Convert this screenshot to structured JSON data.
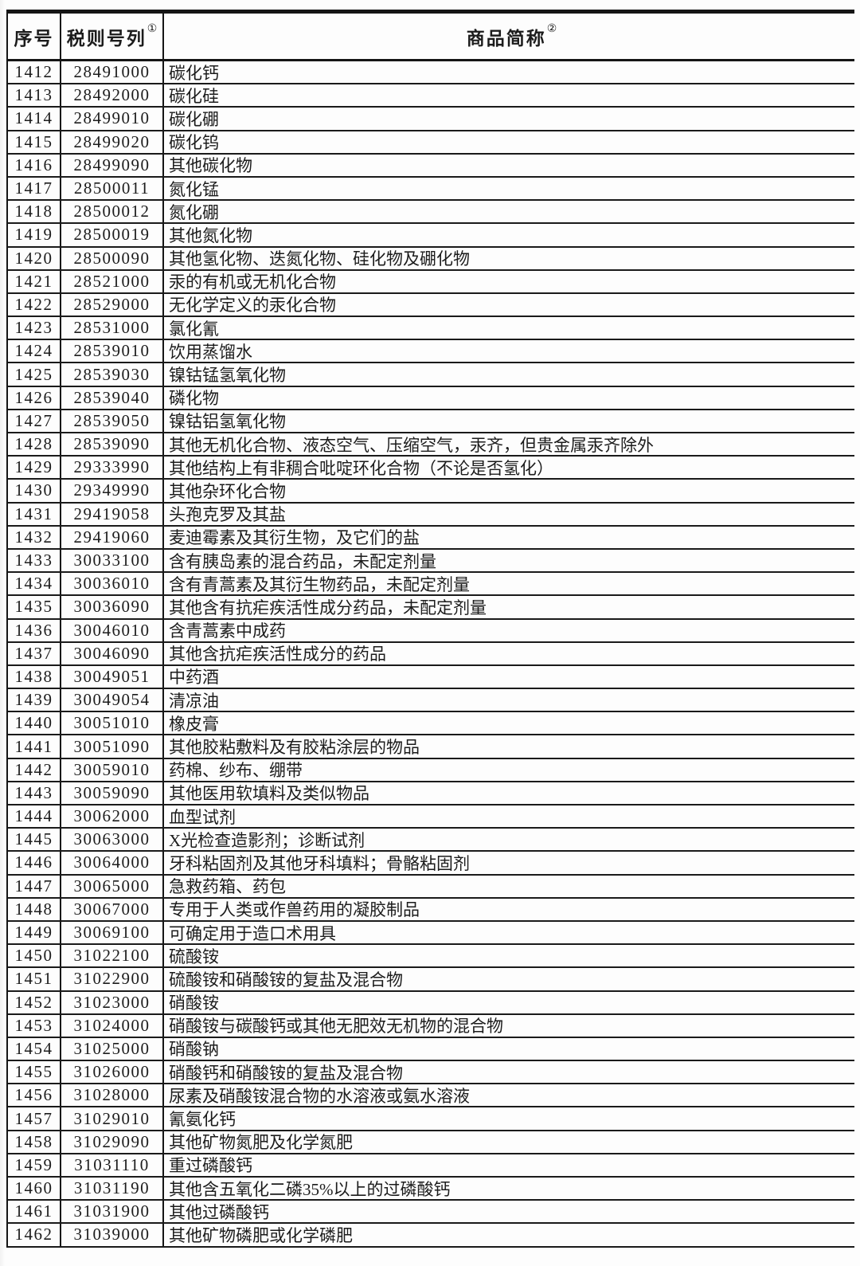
{
  "document": {
    "type": "tariff-schedule-table",
    "colors": {
      "background": "#fdfdfd",
      "text": "#1c1c1c",
      "border": "#1a1a1a"
    }
  },
  "table": {
    "columns": [
      {
        "label": "序号",
        "sup": ""
      },
      {
        "label": "税则号列",
        "sup": "①"
      },
      {
        "label": "商品简称",
        "sup": "②"
      }
    ],
    "rows": [
      {
        "no": "1412",
        "code": "28491000",
        "name": "碳化钙"
      },
      {
        "no": "1413",
        "code": "28492000",
        "name": "碳化硅"
      },
      {
        "no": "1414",
        "code": "28499010",
        "name": "碳化硼"
      },
      {
        "no": "1415",
        "code": "28499020",
        "name": "碳化钨"
      },
      {
        "no": "1416",
        "code": "28499090",
        "name": "其他碳化物"
      },
      {
        "no": "1417",
        "code": "28500011",
        "name": "氮化锰"
      },
      {
        "no": "1418",
        "code": "28500012",
        "name": "氮化硼"
      },
      {
        "no": "1419",
        "code": "28500019",
        "name": "其他氮化物"
      },
      {
        "no": "1420",
        "code": "28500090",
        "name": "其他氢化物、迭氮化物、硅化物及硼化物"
      },
      {
        "no": "1421",
        "code": "28521000",
        "name": "汞的有机或无机化合物"
      },
      {
        "no": "1422",
        "code": "28529000",
        "name": "无化学定义的汞化合物"
      },
      {
        "no": "1423",
        "code": "28531000",
        "name": "氯化氰"
      },
      {
        "no": "1424",
        "code": "28539010",
        "name": "饮用蒸馏水"
      },
      {
        "no": "1425",
        "code": "28539030",
        "name": "镍钴锰氢氧化物"
      },
      {
        "no": "1426",
        "code": "28539040",
        "name": "磷化物"
      },
      {
        "no": "1427",
        "code": "28539050",
        "name": "镍钴铝氢氧化物"
      },
      {
        "no": "1428",
        "code": "28539090",
        "name": "其他无机化合物、液态空气、压缩空气，汞齐，但贵金属汞齐除外"
      },
      {
        "no": "1429",
        "code": "29333990",
        "name": "其他结构上有非稠合吡啶环化合物（不论是否氢化）"
      },
      {
        "no": "1430",
        "code": "29349990",
        "name": "其他杂环化合物"
      },
      {
        "no": "1431",
        "code": "29419058",
        "name": "头孢克罗及其盐"
      },
      {
        "no": "1432",
        "code": "29419060",
        "name": "麦迪霉素及其衍生物，及它们的盐"
      },
      {
        "no": "1433",
        "code": "30033100",
        "name": "含有胰岛素的混合药品，未配定剂量"
      },
      {
        "no": "1434",
        "code": "30036010",
        "name": "含有青蒿素及其衍生物药品，未配定剂量"
      },
      {
        "no": "1435",
        "code": "30036090",
        "name": "其他含有抗疟疾活性成分药品，未配定剂量"
      },
      {
        "no": "1436",
        "code": "30046010",
        "name": "含青蒿素中成药"
      },
      {
        "no": "1437",
        "code": "30046090",
        "name": "其他含抗疟疾活性成分的药品"
      },
      {
        "no": "1438",
        "code": "30049051",
        "name": "中药酒"
      },
      {
        "no": "1439",
        "code": "30049054",
        "name": "清凉油"
      },
      {
        "no": "1440",
        "code": "30051010",
        "name": "橡皮膏"
      },
      {
        "no": "1441",
        "code": "30051090",
        "name": "其他胶粘敷料及有胶粘涂层的物品"
      },
      {
        "no": "1442",
        "code": "30059010",
        "name": "药棉、纱布、绷带"
      },
      {
        "no": "1443",
        "code": "30059090",
        "name": "其他医用软填料及类似物品"
      },
      {
        "no": "1444",
        "code": "30062000",
        "name": "血型试剂"
      },
      {
        "no": "1445",
        "code": "30063000",
        "name": "X光检查造影剂；诊断试剂"
      },
      {
        "no": "1446",
        "code": "30064000",
        "name": "牙科粘固剂及其他牙科填料；骨骼粘固剂"
      },
      {
        "no": "1447",
        "code": "30065000",
        "name": "急救药箱、药包"
      },
      {
        "no": "1448",
        "code": "30067000",
        "name": "专用于人类或作兽药用的凝胶制品"
      },
      {
        "no": "1449",
        "code": "30069100",
        "name": "可确定用于造口术用具"
      },
      {
        "no": "1450",
        "code": "31022100",
        "name": "硫酸铵"
      },
      {
        "no": "1451",
        "code": "31022900",
        "name": "硫酸铵和硝酸铵的复盐及混合物"
      },
      {
        "no": "1452",
        "code": "31023000",
        "name": "硝酸铵"
      },
      {
        "no": "1453",
        "code": "31024000",
        "name": "硝酸铵与碳酸钙或其他无肥效无机物的混合物"
      },
      {
        "no": "1454",
        "code": "31025000",
        "name": "硝酸钠"
      },
      {
        "no": "1455",
        "code": "31026000",
        "name": "硝酸钙和硝酸铵的复盐及混合物"
      },
      {
        "no": "1456",
        "code": "31028000",
        "name": "尿素及硝酸铵混合物的水溶液或氨水溶液"
      },
      {
        "no": "1457",
        "code": "31029010",
        "name": "氰氨化钙"
      },
      {
        "no": "1458",
        "code": "31029090",
        "name": "其他矿物氮肥及化学氮肥"
      },
      {
        "no": "1459",
        "code": "31031110",
        "name": "重过磷酸钙"
      },
      {
        "no": "1460",
        "code": "31031190",
        "name": "其他含五氧化二磷35%以上的过磷酸钙"
      },
      {
        "no": "1461",
        "code": "31031900",
        "name": "其他过磷酸钙"
      },
      {
        "no": "1462",
        "code": "31039000",
        "name": "其他矿物磷肥或化学磷肥"
      }
    ]
  }
}
